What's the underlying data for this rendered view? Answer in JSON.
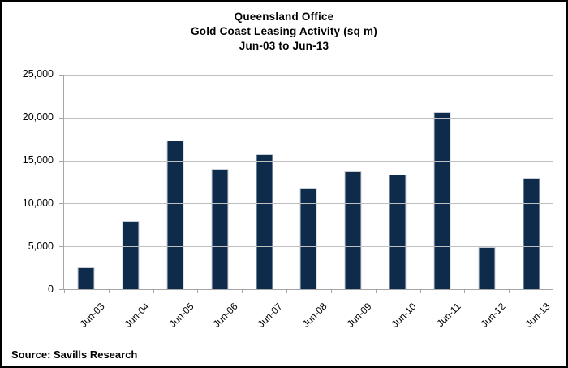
{
  "chart_data": {
    "type": "bar",
    "title_lines": [
      "Queensland Office",
      "Gold Coast Leasing Activity (sq m)",
      "Jun-03 to Jun-13"
    ],
    "categories": [
      "Jun-03",
      "Jun-04",
      "Jun-05",
      "Jun-06",
      "Jun-07",
      "Jun-08",
      "Jun-09",
      "Jun-10",
      "Jun-11",
      "Jun-12",
      "Jun-13"
    ],
    "values": [
      2600,
      8000,
      17300,
      14000,
      15700,
      11700,
      13700,
      13400,
      20600,
      4900,
      13000
    ],
    "xlabel": "",
    "ylabel": "",
    "ylim": [
      0,
      25000
    ],
    "y_tick_step": 5000,
    "y_tick_labels": [
      "25,000",
      "20,000",
      "15,000",
      "10,000",
      "5,000",
      "0"
    ],
    "grid": true,
    "legend": "none",
    "bar_color": "#0f2b4c",
    "bar_border_color": "#c9cfd6",
    "gridline_color": "#c0c0c0",
    "axis_color": "#a6a6a6"
  },
  "source_note": "Source: Savills Research"
}
